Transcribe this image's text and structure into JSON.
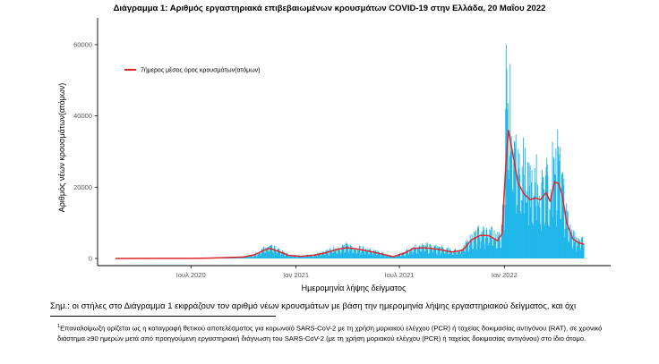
{
  "title": "Διάγραμμα 1: Αριθμός εργαστηριακά επιβεβαιωμένων κρουσμάτων COVID-19 στην Ελλάδα, 20 Μαΐου 2022",
  "note": "Σημ.: οι στήλες στο Διάγραμμα 1 εκφράζουν τον αριθμό νέων κρουσμάτων με βάση την ημερομηνία λήψης εργαστηριακού δείγματος, και όχι",
  "footnote": {
    "marker": "1",
    "text": "Επαναλοίμωξη ορίζεται ως η καταγραφή θετικού αποτελέσματος για κορωνοϊό SARS-CoV-2 με τη χρήση μοριακού ελέγχου (PCR) ή ταχείας δοκιμασίας αντιγόνου (RAT), σε χρονικό διάστημα ≥90 ημερών μετά από προηγούμενη εργαστηριακή διάγνωση του SARS-CoV-2 (με τη χρήση μοριακού ελέγχου (PCR) ή ταχείας δοκιμασίας αντιγόνου) στο ίδιο άτομο."
  },
  "colors": {
    "bars": "#1fb6e9",
    "line": "#e0262b",
    "axis": "#000000",
    "tick_text": "#555555"
  },
  "chart_data": {
    "type": "bar",
    "xlabel": "Ημερομηνία λήψης δείγματος",
    "ylabel": "Αριθμός νέων κρουσμάτων(ατόμων)",
    "ylim": [
      0,
      65000
    ],
    "xlim": [
      "2020-02-20",
      "2022-05-20"
    ],
    "y_ticks": [
      0,
      20000,
      40000,
      60000
    ],
    "x_ticks": [
      {
        "date": "2020-07-01",
        "label": "Ιουλ 2020"
      },
      {
        "date": "2021-01-01",
        "label": "Ιαν 2021"
      },
      {
        "date": "2021-07-01",
        "label": "Ιουλ 2021"
      },
      {
        "date": "2022-01-01",
        "label": "Ιαν 2022"
      }
    ],
    "grid": false,
    "legend": {
      "position": "top-left",
      "entries": [
        "7ήμερος μέσος όρος κρουσμάτων(ατόμων)"
      ]
    },
    "series": [
      {
        "name": "7ήμερος μέσος όρος κρουσμάτων(ατόμων)",
        "type": "line",
        "x": [
          "2020-02-20",
          "2020-05-01",
          "2020-07-01",
          "2020-08-01",
          "2020-09-01",
          "2020-10-01",
          "2020-10-20",
          "2020-11-05",
          "2020-11-15",
          "2020-12-01",
          "2020-12-20",
          "2021-01-10",
          "2021-02-01",
          "2021-02-20",
          "2021-03-15",
          "2021-04-01",
          "2021-04-20",
          "2021-05-10",
          "2021-06-01",
          "2021-06-20",
          "2021-07-10",
          "2021-07-25",
          "2021-08-15",
          "2021-09-10",
          "2021-10-01",
          "2021-10-20",
          "2021-11-05",
          "2021-11-20",
          "2021-12-05",
          "2021-12-20",
          "2021-12-28",
          "2022-01-03",
          "2022-01-08",
          "2022-01-15",
          "2022-01-25",
          "2022-02-05",
          "2022-02-15",
          "2022-02-25",
          "2022-03-05",
          "2022-03-15",
          "2022-03-22",
          "2022-03-30",
          "2022-04-06",
          "2022-04-12",
          "2022-04-20",
          "2022-05-01",
          "2022-05-10",
          "2022-05-20"
        ],
        "values": [
          0,
          20,
          30,
          100,
          250,
          400,
          1000,
          2200,
          2900,
          2000,
          800,
          600,
          900,
          1500,
          2600,
          3000,
          2600,
          2000,
          1200,
          500,
          1500,
          2800,
          3000,
          2500,
          1800,
          2300,
          5300,
          6500,
          6400,
          5000,
          7000,
          25000,
          36000,
          30000,
          21000,
          18000,
          16500,
          17000,
          16500,
          18500,
          16000,
          21500,
          21000,
          18000,
          10000,
          5500,
          4500,
          4000
        ]
      }
    ],
    "daily_cases_description": "Blue bars: daily new cases, roughly tracking the 7-day mean with day-to-day spikes; peak about 60000 in early January 2022."
  }
}
